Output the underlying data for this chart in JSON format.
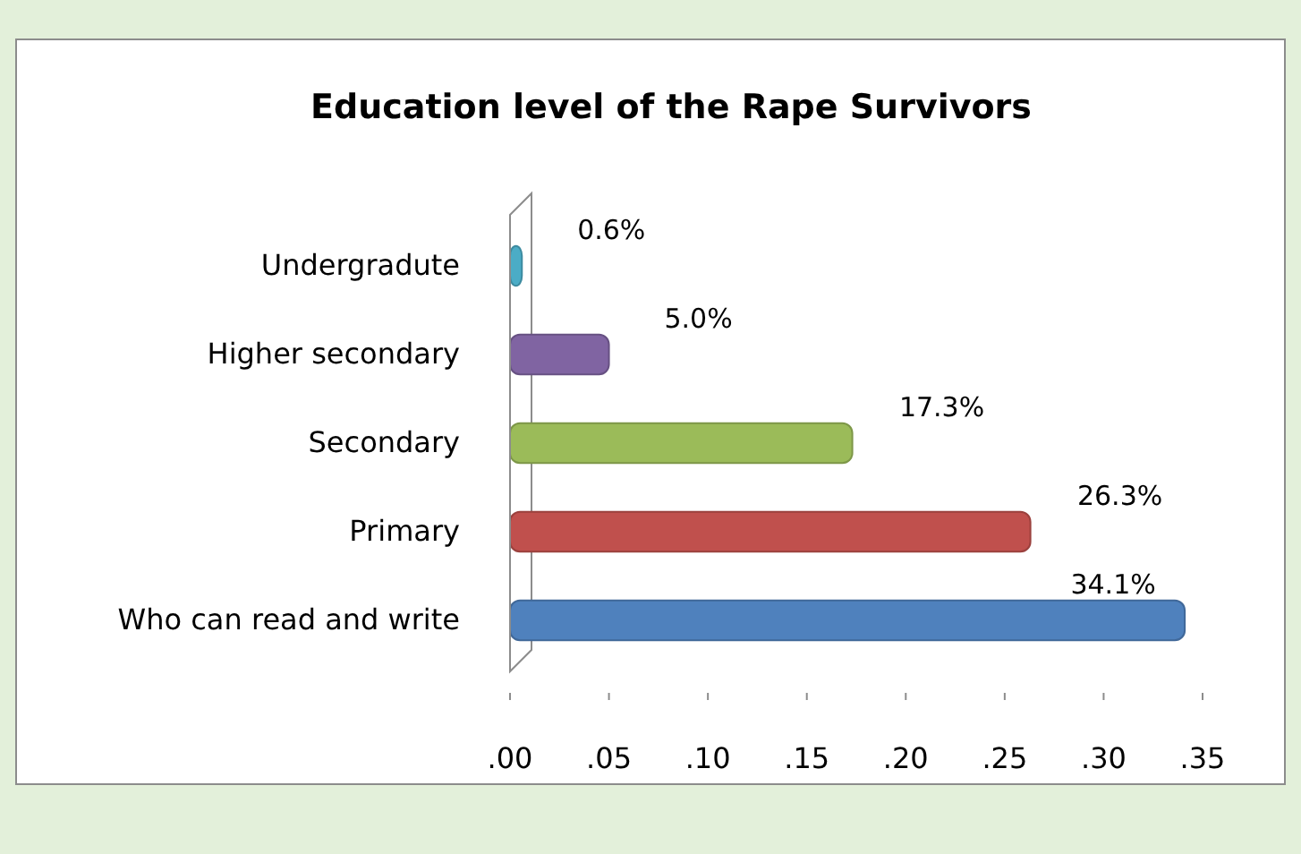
{
  "chart_data": {
    "type": "bar",
    "orientation": "horizontal",
    "title": "Education level of the Rape Survivors",
    "categories": [
      "Undergradute",
      "Higher secondary",
      "Secondary",
      "Primary",
      "Who can read and write"
    ],
    "values": [
      0.006,
      0.05,
      0.173,
      0.263,
      0.341
    ],
    "colors": [
      "#4bacc6",
      "#8064a2",
      "#9bbb59",
      "#c0504d",
      "#4f81bd"
    ],
    "value_labels": [
      "0.6%",
      "5.0%",
      "17.3%",
      "26.3%",
      "34.1%"
    ],
    "xlim": [
      0,
      0.35
    ],
    "xticks": [
      {
        "value": 0,
        "label": ".00"
      },
      {
        "value": 0.05,
        "label": ".05"
      },
      {
        "value": 0.1,
        "label": ".10"
      },
      {
        "value": 0.15,
        "label": ".15"
      },
      {
        "value": 0.2,
        "label": ".20"
      },
      {
        "value": 0.25,
        "label": ".25"
      },
      {
        "value": 0.3,
        "label": ".30"
      },
      {
        "value": 0.35,
        "label": ".35"
      }
    ]
  }
}
